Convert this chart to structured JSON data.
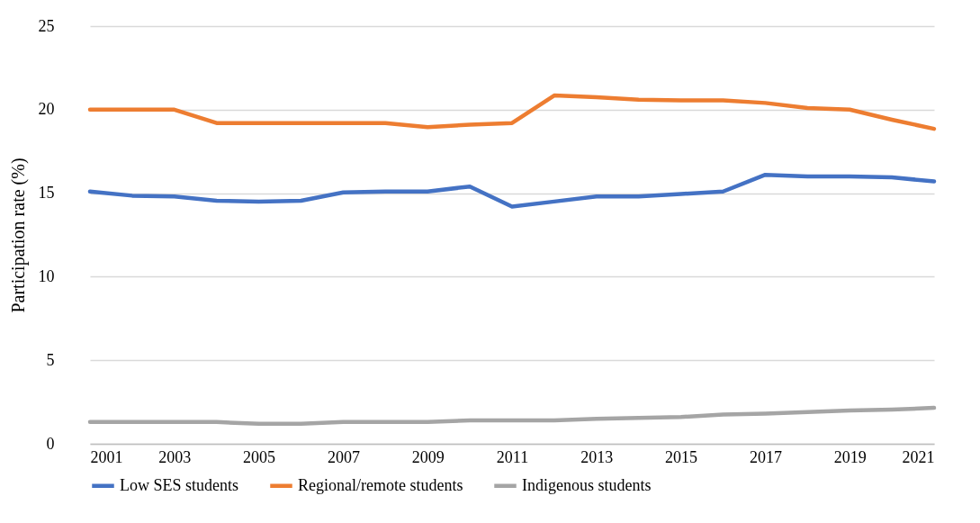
{
  "chart_data": {
    "type": "line",
    "ylabel": "Participation rate (%)",
    "x": [
      2001,
      2002,
      2003,
      2004,
      2005,
      2006,
      2007,
      2008,
      2009,
      2010,
      2011,
      2012,
      2013,
      2014,
      2015,
      2016,
      2017,
      2018,
      2019,
      2020,
      2021
    ],
    "xlim": [
      2001,
      2021
    ],
    "xticks": [
      2001,
      2003,
      2005,
      2007,
      2009,
      2011,
      2013,
      2015,
      2017,
      2019,
      2021
    ],
    "ylim": [
      0,
      25
    ],
    "yticks": [
      0,
      5,
      10,
      15,
      20,
      25
    ],
    "grid": "y",
    "legend": "bottom",
    "marker": "none",
    "line_style": "solid",
    "series": [
      {
        "name": "Low SES students",
        "color": "#4472c4",
        "values": [
          15.1,
          14.85,
          14.8,
          14.55,
          14.5,
          14.55,
          15.05,
          15.1,
          15.1,
          15.4,
          14.2,
          14.5,
          14.8,
          14.8,
          14.95,
          15.1,
          16.1,
          16.0,
          16.0,
          15.95,
          15.7
        ]
      },
      {
        "name": "Regional/remote students",
        "color": "#ed7d31",
        "values": [
          20.0,
          20.0,
          20.0,
          19.2,
          19.2,
          19.2,
          19.2,
          19.2,
          18.95,
          19.1,
          19.2,
          20.85,
          20.75,
          20.6,
          20.55,
          20.55,
          20.4,
          20.1,
          20.0,
          19.4,
          18.85
        ]
      },
      {
        "name": "Indigenous students",
        "color": "#a5a5a5",
        "values": [
          1.3,
          1.3,
          1.3,
          1.3,
          1.2,
          1.2,
          1.3,
          1.3,
          1.3,
          1.4,
          1.4,
          1.4,
          1.5,
          1.55,
          1.6,
          1.75,
          1.8,
          1.9,
          2.0,
          2.05,
          2.15
        ]
      }
    ]
  }
}
